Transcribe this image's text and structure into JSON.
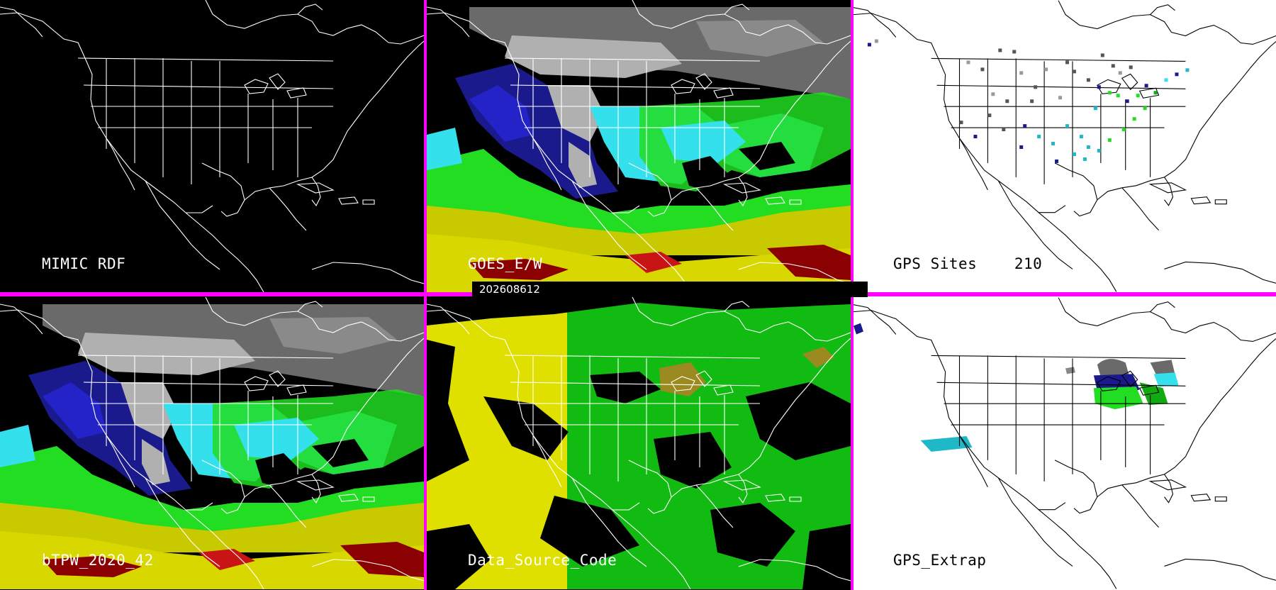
{
  "panels": [
    {
      "id": "mimic",
      "label": "MIMIC RDF",
      "background": "#000000"
    },
    {
      "id": "goes",
      "label": "GOES_E/W",
      "background": "#000000"
    },
    {
      "id": "gps_sites",
      "label": "GPS Sites    210",
      "background": "#ffffff"
    },
    {
      "id": "btpw",
      "label": "bTPW_2020_42",
      "background": "#000000"
    },
    {
      "id": "dsc",
      "label": "Data_Source_Code",
      "background": "#000000"
    },
    {
      "id": "gps_extrap",
      "label": "GPS_Extrap",
      "background": "#ffffff"
    }
  ],
  "timestamp": "202608612",
  "colors": {
    "divider": "#ff00ff",
    "map_lines_dark": "#ffffff",
    "map_lines_light": "#000000",
    "tpw_scale": [
      "#b0b0b0",
      "#6a6a6a",
      "#1a1a8c",
      "#2323c8",
      "#33e0ec",
      "#1fb8c8",
      "#22dd22",
      "#11aa11",
      "#d8d800",
      "#c9c900",
      "#c81414",
      "#8b0000"
    ],
    "source_yellow": "#e0e000",
    "source_green": "#11bb11",
    "source_olive": "#9a8a20"
  }
}
